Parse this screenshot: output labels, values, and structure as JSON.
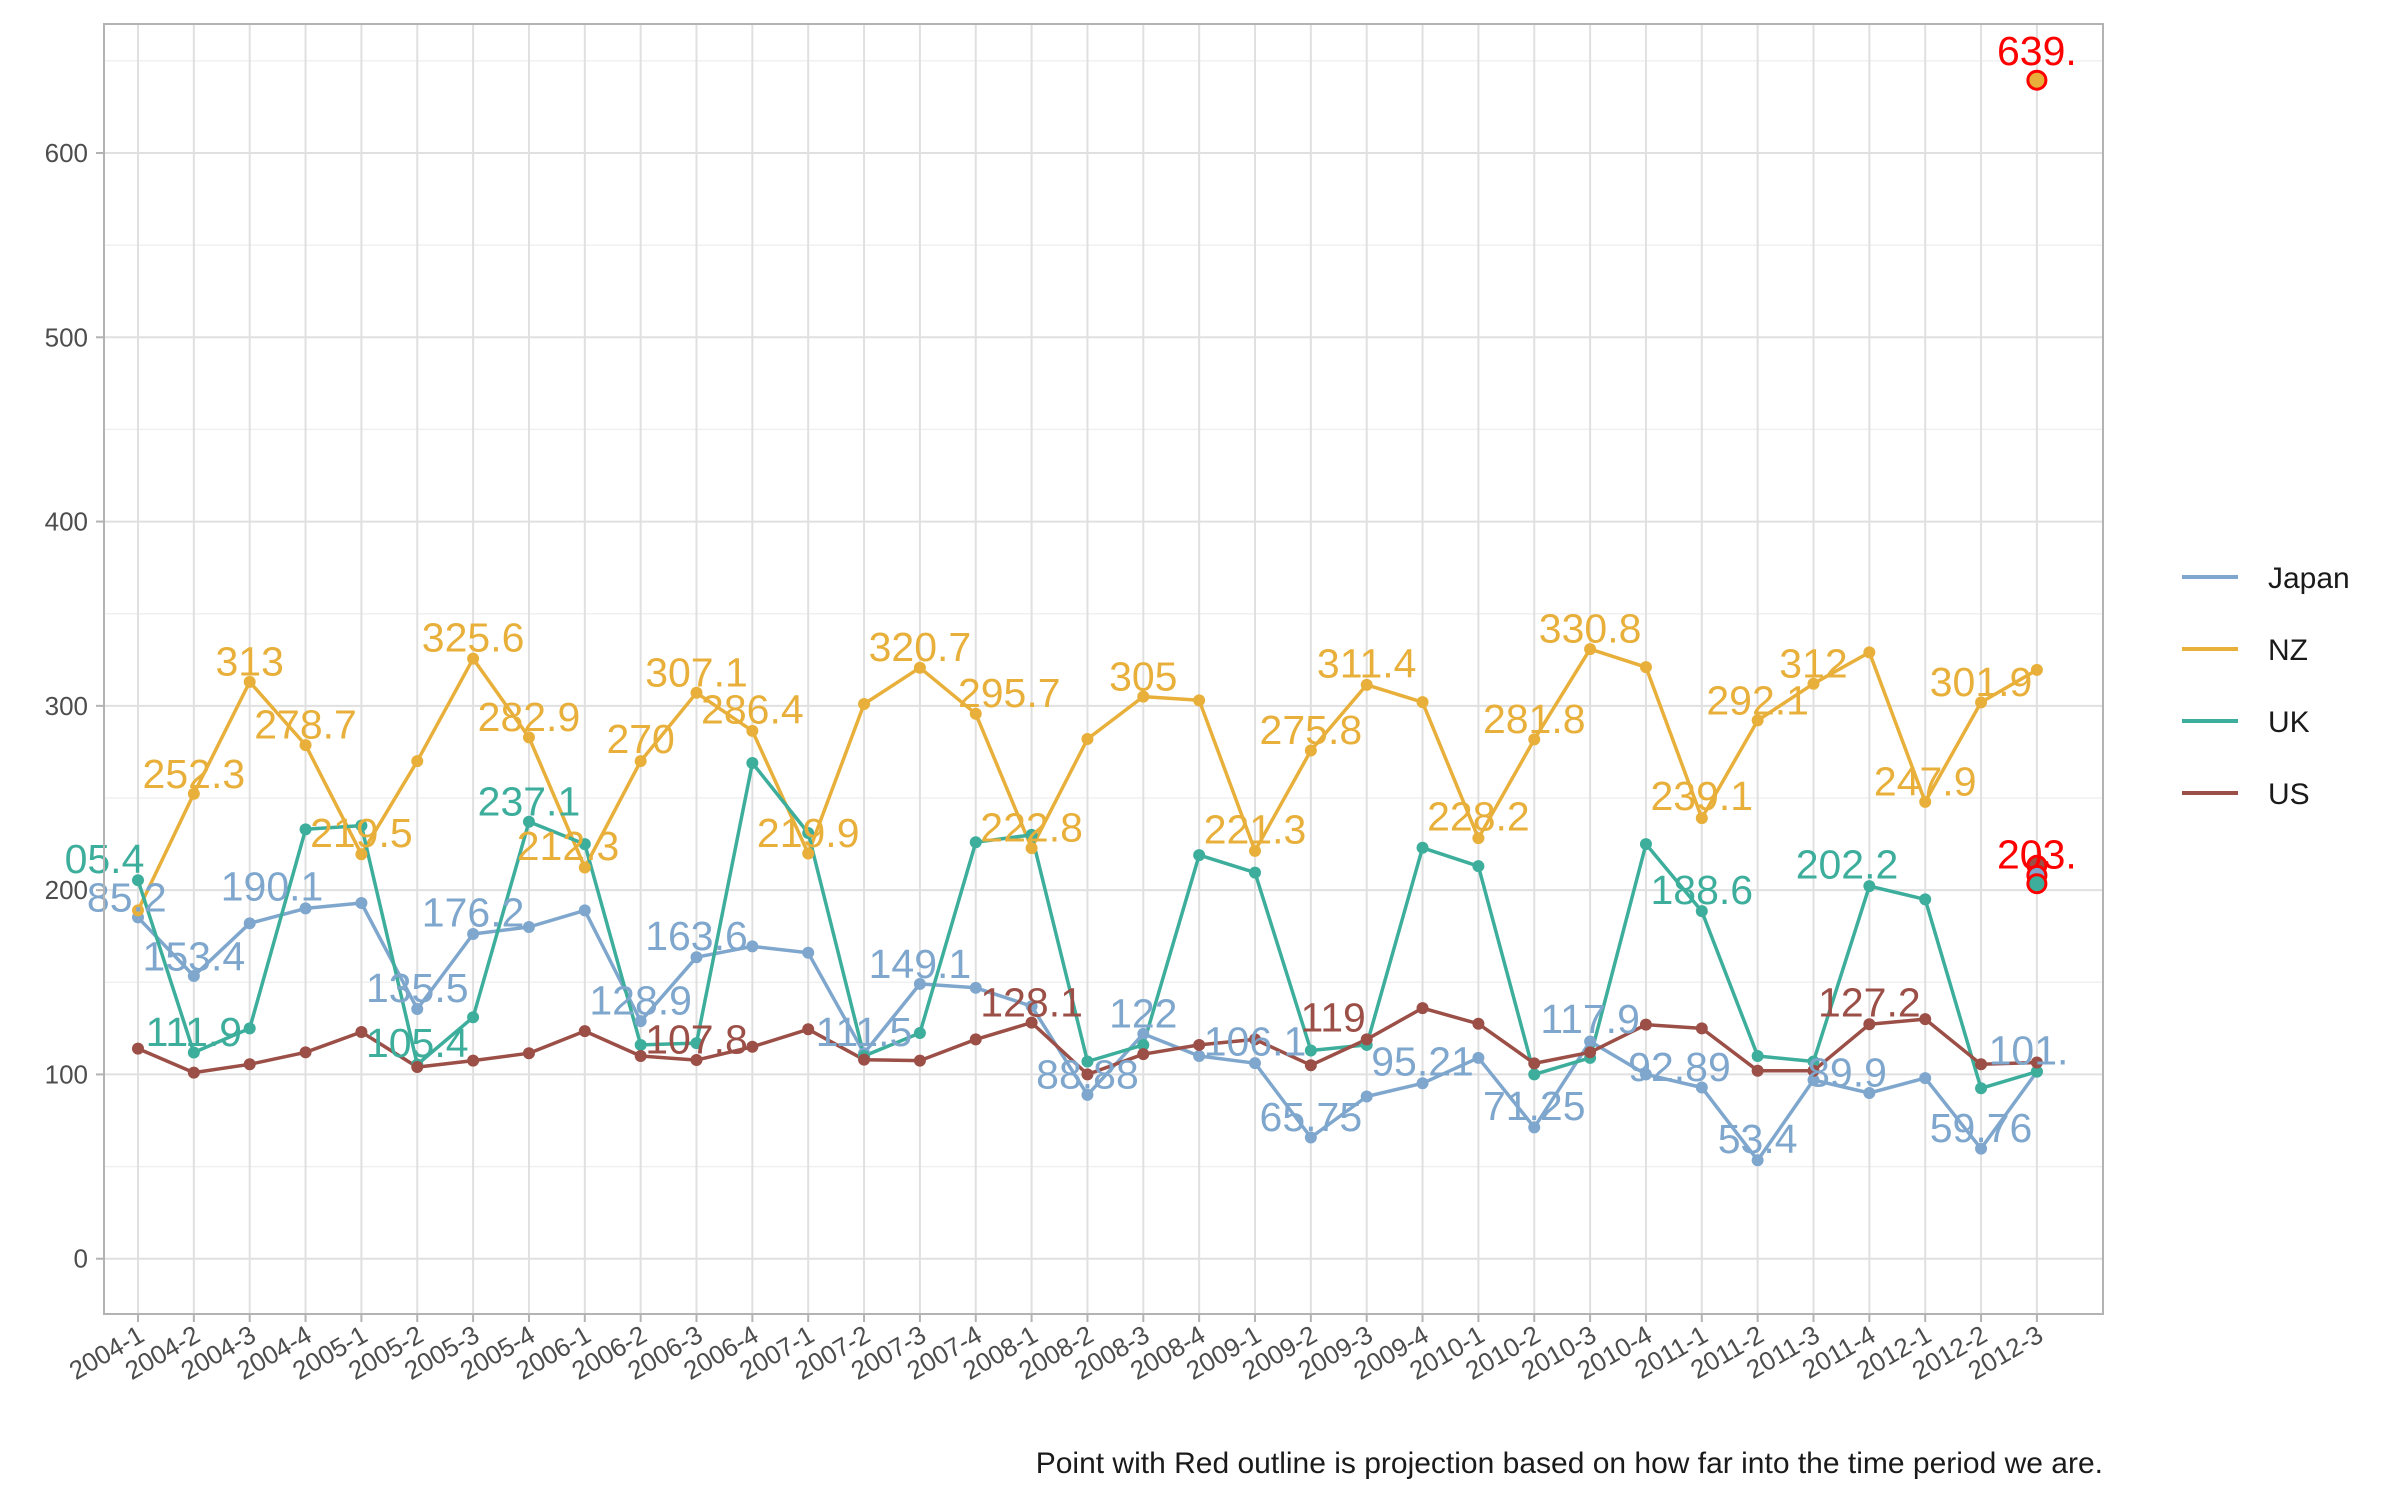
{
  "chart_data": {
    "type": "line",
    "x": [
      "2004-1",
      "2004-2",
      "2004-3",
      "2004-4",
      "2005-1",
      "2005-2",
      "2005-3",
      "2005-4",
      "2006-1",
      "2006-2",
      "2006-3",
      "2006-4",
      "2007-1",
      "2007-2",
      "2007-3",
      "2007-4",
      "2008-1",
      "2008-2",
      "2008-3",
      "2008-4",
      "2009-1",
      "2009-2",
      "2009-3",
      "2009-4",
      "2010-1",
      "2010-2",
      "2010-3",
      "2010-4",
      "2011-1",
      "2011-2",
      "2011-3",
      "2011-4",
      "2012-1",
      "2012-2",
      "2012-3"
    ],
    "ylim": [
      -30,
      670
    ],
    "yticks": [
      0,
      100,
      200,
      300,
      400,
      500,
      600
    ],
    "grid": true,
    "legend_position": "right",
    "caption": "Point with Red outline is projection based on how far into the time period we are.",
    "series": [
      {
        "name": "Japan",
        "color": "#7FA7CD",
        "values": [
          185.2,
          153.4,
          182,
          190.1,
          193,
          135.5,
          176.2,
          180,
          189,
          128.9,
          163.6,
          169.5,
          166,
          111.5,
          149.1,
          147,
          137,
          88.88,
          122,
          110,
          106.1,
          65.75,
          88,
          95.21,
          109,
          71.25,
          117.9,
          100,
          92.89,
          53.4,
          97,
          89.9,
          98,
          59.76,
          101.5
        ]
      },
      {
        "name": "NZ",
        "color": "#E8B03B",
        "values": [
          189,
          252.3,
          313,
          278.7,
          219.5,
          270,
          325.6,
          282.9,
          212.3,
          270,
          307.1,
          286.4,
          219.9,
          301,
          320.7,
          295.7,
          222.8,
          282,
          305,
          303,
          221.3,
          275.8,
          311.4,
          302,
          228.2,
          281.8,
          330.8,
          321,
          239.1,
          292.1,
          312,
          329,
          247.9,
          301.9,
          319.5
        ]
      },
      {
        "name": "UK",
        "color": "#3EAE9C",
        "values": [
          205.4,
          111.9,
          125,
          233,
          235,
          105.4,
          131,
          237.1,
          225,
          116,
          117,
          269,
          231,
          110,
          122.5,
          226,
          230,
          107,
          116,
          219,
          209.5,
          113,
          116,
          223,
          213,
          100,
          109,
          225,
          188.6,
          110,
          107,
          202.2,
          195,
          92.5,
          101.5
        ]
      },
      {
        "name": "US",
        "color": "#9B4F47",
        "values": [
          114,
          101,
          105.5,
          112,
          123,
          104,
          107.5,
          111.5,
          123.5,
          110,
          107.8,
          115,
          124.5,
          108,
          107.5,
          119,
          128.1,
          100,
          111,
          116,
          119,
          105,
          119,
          136,
          127.5,
          106,
          112,
          127,
          125,
          102,
          102,
          127.2,
          130,
          105.5,
          106.5
        ]
      }
    ],
    "projections": [
      {
        "series": "NZ",
        "x": "2012-3",
        "value": 639.5,
        "label": "639."
      },
      {
        "series": "US",
        "x": "2012-3",
        "value": 213.5,
        "label": ""
      },
      {
        "series": "Japan",
        "x": "2012-3",
        "value": 208,
        "label": ""
      },
      {
        "series": "UK",
        "x": "2012-3",
        "value": 203.5,
        "label": "203."
      }
    ],
    "annotations": [
      {
        "series": "Japan",
        "x": "2004-1",
        "text": "85.2",
        "x_offset": -0.2,
        "y": 196
      },
      {
        "series": "Japan",
        "x": "2004-2",
        "text": "153.4",
        "x_offset": 0,
        "y": 164
      },
      {
        "series": "Japan",
        "x": "2004-4",
        "text": "190.1",
        "x_offset": -0.6,
        "y": 202
      },
      {
        "series": "Japan",
        "x": "2005-2",
        "text": "135.5",
        "x_offset": 0,
        "y": 147
      },
      {
        "series": "Japan",
        "x": "2005-3",
        "text": "176.2",
        "x_offset": 0,
        "y": 188
      },
      {
        "series": "Japan",
        "x": "2006-2",
        "text": "128.9",
        "x_offset": 0,
        "y": 140
      },
      {
        "series": "Japan",
        "x": "2006-3",
        "text": "163.6",
        "x_offset": 0,
        "y": 175
      },
      {
        "series": "Japan",
        "x": "2007-2",
        "text": "111.5",
        "x_offset": 0,
        "y": 123
      },
      {
        "series": "Japan",
        "x": "2007-3",
        "text": "149.1",
        "x_offset": 0,
        "y": 160
      },
      {
        "series": "Japan",
        "x": "2008-2",
        "text": "88.88",
        "x_offset": 0,
        "y": 100
      },
      {
        "series": "Japan",
        "x": "2008-3",
        "text": "122",
        "x_offset": 0,
        "y": 133
      },
      {
        "series": "Japan",
        "x": "2009-1",
        "text": "106.1",
        "x_offset": 0,
        "y": 118
      },
      {
        "series": "Japan",
        "x": "2009-2",
        "text": "65.75",
        "x_offset": 0,
        "y": 77
      },
      {
        "series": "Japan",
        "x": "2009-4",
        "text": "95.21",
        "x_offset": 0,
        "y": 107
      },
      {
        "series": "Japan",
        "x": "2010-2",
        "text": "71.25",
        "x_offset": 0,
        "y": 83
      },
      {
        "series": "Japan",
        "x": "2010-3",
        "text": "117.9",
        "x_offset": 0,
        "y": 130
      },
      {
        "series": "Japan",
        "x": "2011-1",
        "text": "92.89",
        "x_offset": -0.4,
        "y": 104
      },
      {
        "series": "Japan",
        "x": "2011-2",
        "text": "53.4",
        "x_offset": 0,
        "y": 65
      },
      {
        "series": "Japan",
        "x": "2011-4",
        "text": "89.9",
        "x_offset": -0.4,
        "y": 101
      },
      {
        "series": "Japan",
        "x": "2012-2",
        "text": "59.76",
        "x_offset": 0,
        "y": 71
      },
      {
        "series": "Japan",
        "x": "2012-3",
        "text": "101.",
        "x_offset": -0.15,
        "y": 113
      },
      {
        "series": "NZ",
        "x": "2004-2",
        "text": "252.3",
        "x_offset": 0,
        "y": 263
      },
      {
        "series": "NZ",
        "x": "2004-3",
        "text": "313",
        "x_offset": 0,
        "y": 324
      },
      {
        "series": "NZ",
        "x": "2004-4",
        "text": "278.7",
        "x_offset": 0,
        "y": 290
      },
      {
        "series": "NZ",
        "x": "2005-1",
        "text": "219.5",
        "x_offset": 0,
        "y": 231
      },
      {
        "series": "NZ",
        "x": "2005-3",
        "text": "325.6",
        "x_offset": 0,
        "y": 337
      },
      {
        "series": "NZ",
        "x": "2005-4",
        "text": "282.9",
        "x_offset": 0,
        "y": 294
      },
      {
        "series": "NZ",
        "x": "2006-1",
        "text": "212.3",
        "x_offset": -0.3,
        "y": 224
      },
      {
        "series": "NZ",
        "x": "2006-2",
        "text": "270",
        "x_offset": 0,
        "y": 282
      },
      {
        "series": "NZ",
        "x": "2006-3",
        "text": "307.1",
        "x_offset": 0,
        "y": 318
      },
      {
        "series": "NZ",
        "x": "2006-4",
        "text": "286.4",
        "x_offset": 0,
        "y": 298
      },
      {
        "series": "NZ",
        "x": "2007-1",
        "text": "219.9",
        "x_offset": 0,
        "y": 231
      },
      {
        "series": "NZ",
        "x": "2007-3",
        "text": "320.7",
        "x_offset": 0,
        "y": 332
      },
      {
        "series": "NZ",
        "x": "2007-4",
        "text": "295.7",
        "x_offset": 0.6,
        "y": 307
      },
      {
        "series": "NZ",
        "x": "2008-1",
        "text": "222.8",
        "x_offset": 0,
        "y": 234
      },
      {
        "series": "NZ",
        "x": "2008-3",
        "text": "305",
        "x_offset": 0,
        "y": 316
      },
      {
        "series": "NZ",
        "x": "2009-1",
        "text": "221.3",
        "x_offset": 0,
        "y": 233
      },
      {
        "series": "NZ",
        "x": "2009-2",
        "text": "275.8",
        "x_offset": 0,
        "y": 287
      },
      {
        "series": "NZ",
        "x": "2009-3",
        "text": "311.4",
        "x_offset": 0,
        "y": 323
      },
      {
        "series": "NZ",
        "x": "2010-1",
        "text": "228.2",
        "x_offset": 0,
        "y": 240
      },
      {
        "series": "NZ",
        "x": "2010-2",
        "text": "281.8",
        "x_offset": 0,
        "y": 293
      },
      {
        "series": "NZ",
        "x": "2010-3",
        "text": "330.8",
        "x_offset": 0,
        "y": 342
      },
      {
        "series": "NZ",
        "x": "2011-1",
        "text": "239.1",
        "x_offset": 0,
        "y": 251
      },
      {
        "series": "NZ",
        "x": "2011-2",
        "text": "292.1",
        "x_offset": 0,
        "y": 303
      },
      {
        "series": "NZ",
        "x": "2011-3",
        "text": "312",
        "x_offset": 0,
        "y": 323
      },
      {
        "series": "NZ",
        "x": "2012-1",
        "text": "247.9",
        "x_offset": 0,
        "y": 259
      },
      {
        "series": "NZ",
        "x": "2012-2",
        "text": "301.9",
        "x_offset": 0,
        "y": 313
      },
      {
        "series": "UK",
        "x": "2004-1",
        "text": "05.4",
        "x_offset": -0.6,
        "y": 217
      },
      {
        "series": "UK",
        "x": "2004-2",
        "text": "111.9",
        "x_offset": 0,
        "y": 123
      },
      {
        "series": "UK",
        "x": "2005-2",
        "text": "105.4",
        "x_offset": 0,
        "y": 117
      },
      {
        "series": "UK",
        "x": "2005-4",
        "text": "237.1",
        "x_offset": 0,
        "y": 248
      },
      {
        "series": "UK",
        "x": "2011-1",
        "text": "188.6",
        "x_offset": 0,
        "y": 200
      },
      {
        "series": "UK",
        "x": "2011-4",
        "text": "202.2",
        "x_offset": -0.4,
        "y": 214
      },
      {
        "series": "US",
        "x": "2006-3",
        "text": "107.8",
        "x_offset": 0,
        "y": 119
      },
      {
        "series": "US",
        "x": "2008-1",
        "text": "128.1",
        "x_offset": 0,
        "y": 139
      },
      {
        "series": "US",
        "x": "2009-2",
        "text": "119",
        "x_offset": 0.4,
        "y": 131
      },
      {
        "series": "US",
        "x": "2011-4",
        "text": "127.2",
        "x_offset": 0,
        "y": 139
      }
    ]
  }
}
